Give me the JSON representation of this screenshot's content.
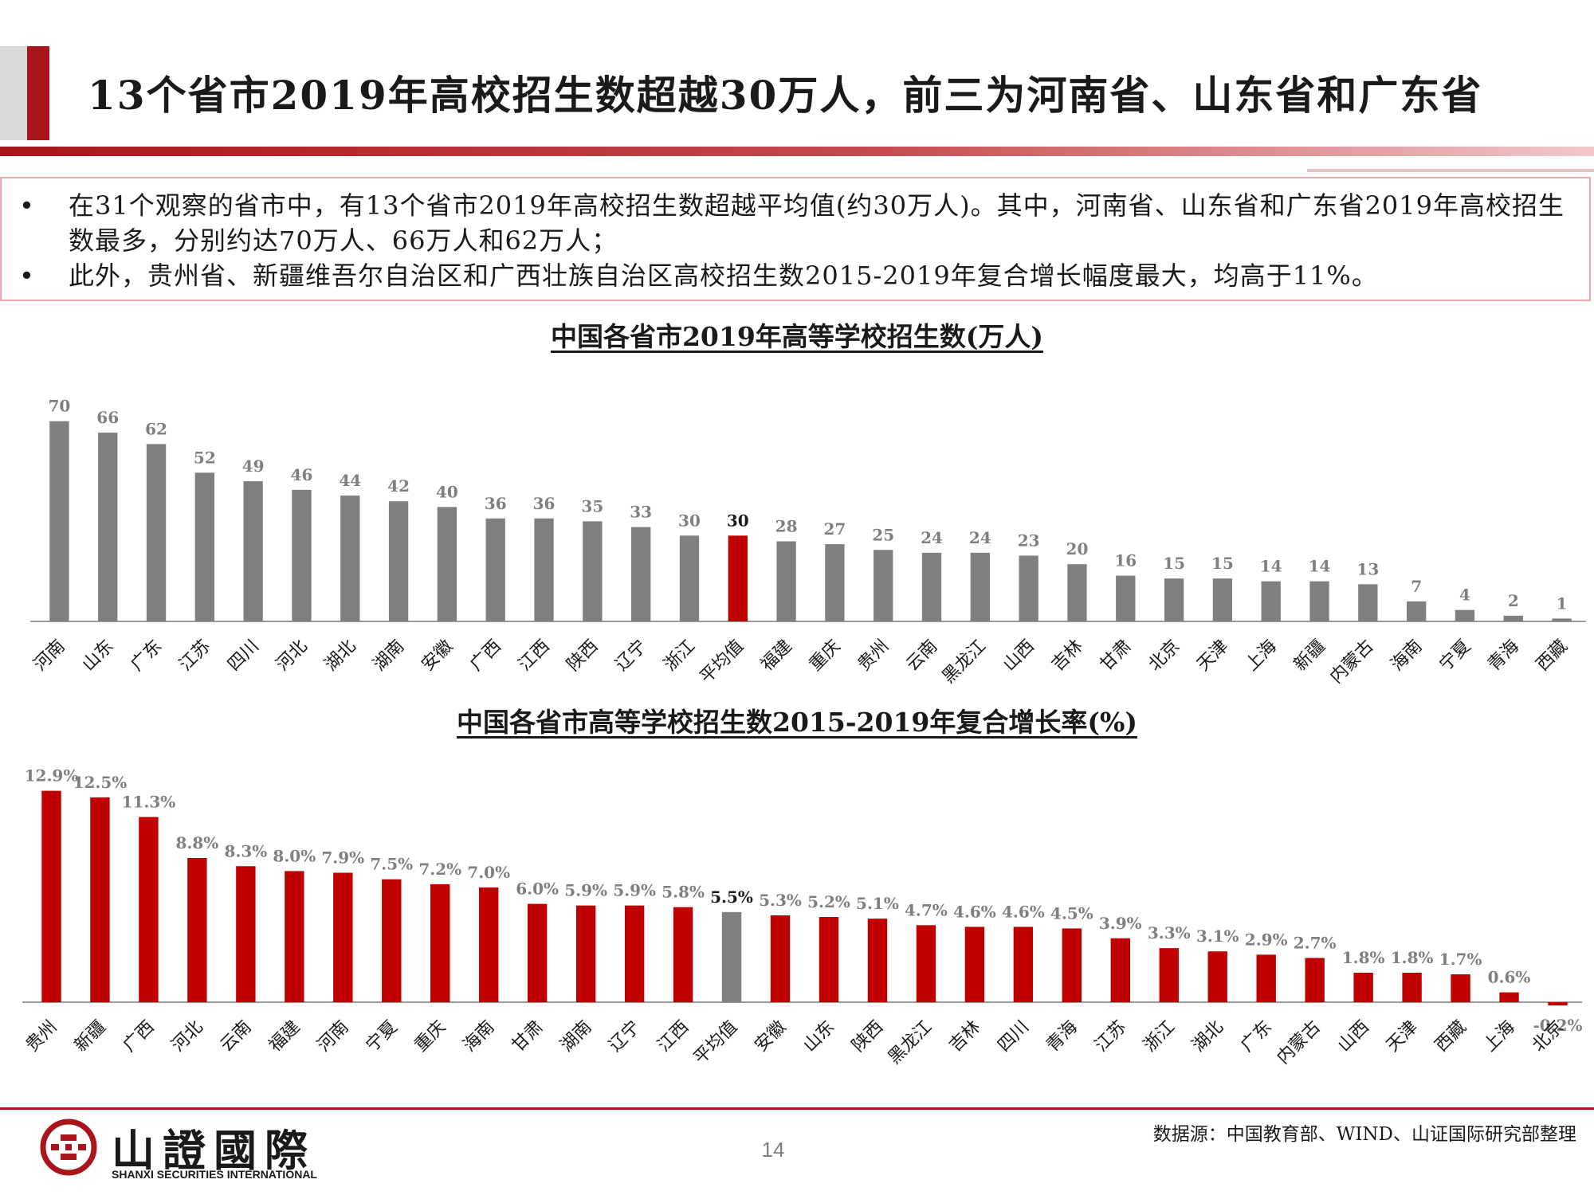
{
  "header": {
    "title": "13个省市2019年高校招生数超越30万人，前三为河南省、山东省和广东省"
  },
  "summary": {
    "bullet_symbol": "•",
    "bullets": [
      "在31个观察的省市中，有13个省市2019年高校招生数超越平均值(约30万人)。其中，河南省、山东省和广东省2019年高校招生数最多，分别约达70万人、66万人和62万人；",
      "此外，贵州省、新疆维吾尔自治区和广西壮族自治区高校招生数2015-2019年复合增长幅度最大，均高于11%。"
    ]
  },
  "colors": {
    "brand_red": "#a8151b",
    "bar_gray": "#7f7f7f",
    "bar_red": "#c00000"
  },
  "chart_data": [
    {
      "type": "bar",
      "title": "中国各省市2019年高等学校招生数(万人)",
      "categories": [
        "河南",
        "山东",
        "广东",
        "江苏",
        "四川",
        "河北",
        "湖北",
        "湖南",
        "安徽",
        "广西",
        "江西",
        "陕西",
        "辽宁",
        "浙江",
        "平均值",
        "福建",
        "重庆",
        "贵州",
        "云南",
        "黑龙江",
        "山西",
        "吉林",
        "甘肃",
        "北京",
        "天津",
        "上海",
        "新疆",
        "内蒙古",
        "海南",
        "宁夏",
        "青海",
        "西藏"
      ],
      "values": [
        70,
        66,
        62,
        52,
        49,
        46,
        44,
        42,
        40,
        36,
        36,
        35,
        33,
        30,
        30,
        28,
        27,
        25,
        24,
        24,
        23,
        20,
        16,
        15,
        15,
        14,
        14,
        13,
        7,
        4,
        2,
        1
      ],
      "labels": [
        "70",
        "66",
        "62",
        "52",
        "49",
        "46",
        "44",
        "42",
        "40",
        "36",
        "36",
        "35",
        "33",
        "30",
        "30",
        "28",
        "27",
        "25",
        "24",
        "24",
        "23",
        "20",
        "16",
        "15",
        "15",
        "14",
        "14",
        "13",
        "7",
        "4",
        "2",
        "1"
      ],
      "highlight_category": "平均值",
      "bar_color": "#7f7f7f",
      "highlight_color": "#c00000",
      "ylim": [
        0,
        78
      ]
    },
    {
      "type": "bar",
      "title": "中国各省市高等学校招生数2015-2019年复合增长率(%)",
      "categories": [
        "贵州",
        "新疆",
        "广西",
        "河北",
        "云南",
        "福建",
        "河南",
        "宁夏",
        "重庆",
        "海南",
        "甘肃",
        "湖南",
        "辽宁",
        "江西",
        "平均值",
        "安徽",
        "山东",
        "陕西",
        "黑龙江",
        "吉林",
        "四川",
        "青海",
        "江苏",
        "浙江",
        "湖北",
        "广东",
        "内蒙古",
        "山西",
        "天津",
        "西藏",
        "上海",
        "北京"
      ],
      "values": [
        12.9,
        12.5,
        11.3,
        8.8,
        8.3,
        8.0,
        7.9,
        7.5,
        7.2,
        7.0,
        6.0,
        5.9,
        5.9,
        5.8,
        5.5,
        5.3,
        5.2,
        5.1,
        4.7,
        4.6,
        4.6,
        4.5,
        3.9,
        3.3,
        3.1,
        2.9,
        2.7,
        1.8,
        1.8,
        1.7,
        0.6,
        -0.2
      ],
      "labels": [
        "12.9%",
        "12.5%",
        "11.3%",
        "8.8%",
        "8.3%",
        "8.0%",
        "7.9%",
        "7.5%",
        "7.2%",
        "7.0%",
        "6.0%",
        "5.9%",
        "5.9%",
        "5.8%",
        "5.5%",
        "5.3%",
        "5.2%",
        "5.1%",
        "4.7%",
        "4.6%",
        "4.6%",
        "4.5%",
        "3.9%",
        "3.3%",
        "3.1%",
        "2.9%",
        "2.7%",
        "1.8%",
        "1.8%",
        "1.7%",
        "0.6%",
        "-0.2%"
      ],
      "highlight_category": "平均值",
      "bar_color": "#c00000",
      "highlight_color": "#7f7f7f",
      "ylim": [
        -0.2,
        14
      ]
    }
  ],
  "footer": {
    "logo_text": "山證國際",
    "logo_en": "SHANXI SECURITIES INTERNATIONAL",
    "page_number": "14",
    "source": "数据源：中国教育部、WIND、山证国际研究部整理"
  }
}
